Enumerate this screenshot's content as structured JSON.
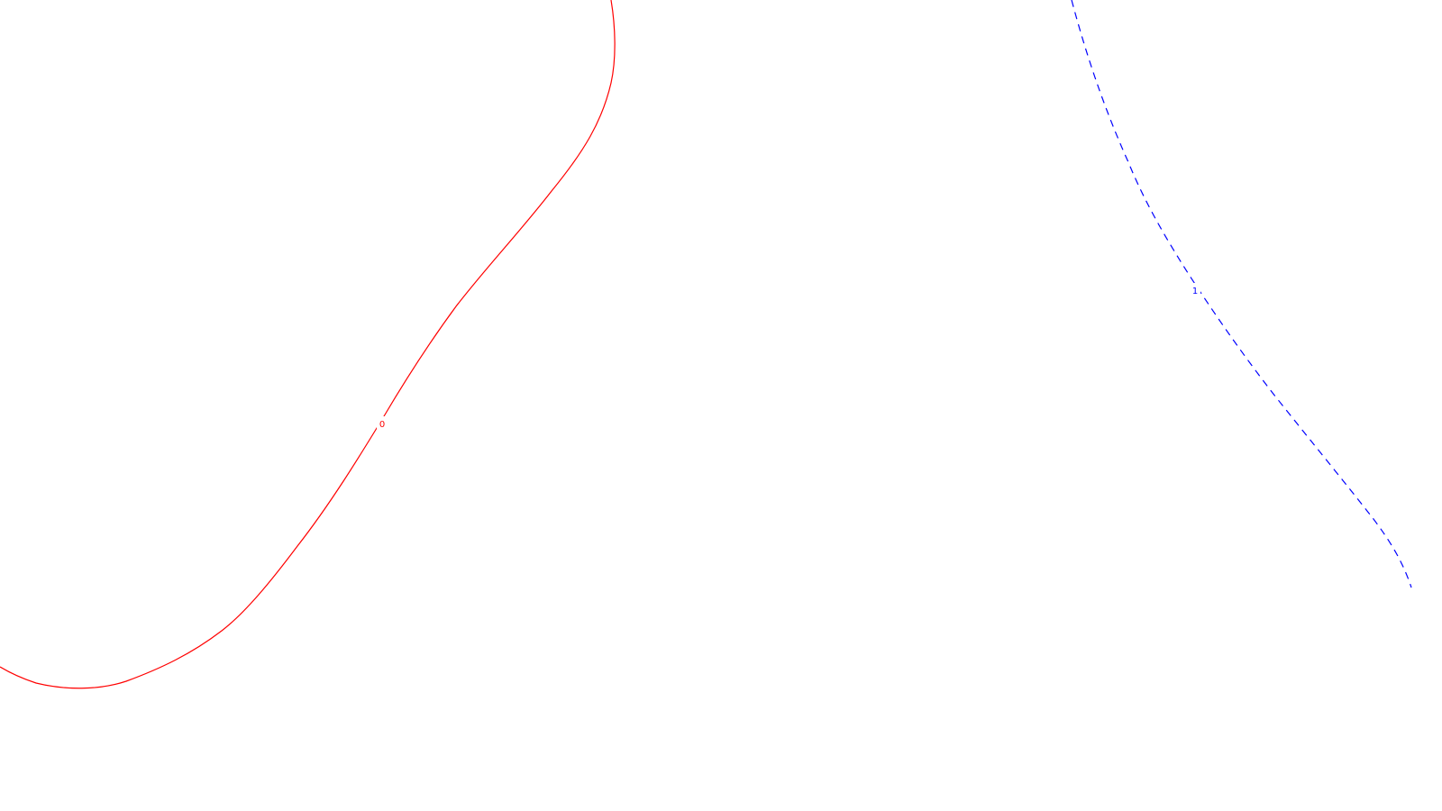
{
  "contours": [
    {
      "id": "contour-0",
      "label": "0",
      "color": "#ff0000",
      "line_style": "solid"
    },
    {
      "id": "contour-1",
      "label": "1",
      "color": "#0000ff",
      "line_style": "dashed"
    }
  ]
}
